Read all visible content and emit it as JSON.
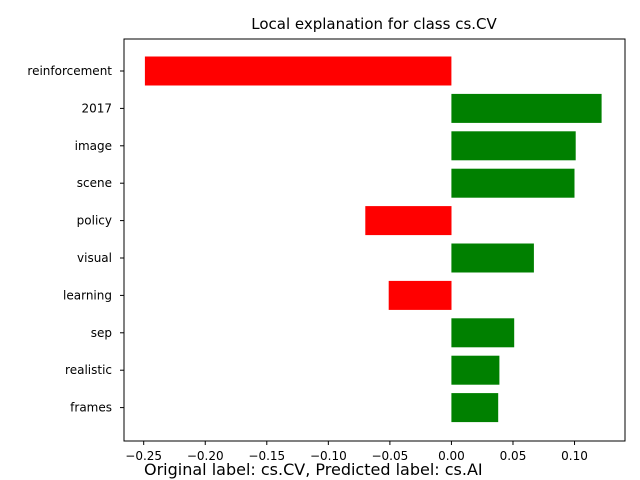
{
  "chart_data": {
    "type": "bar",
    "orientation": "horizontal",
    "title": "Local explanation for class cs.CV",
    "categories": [
      "reinforcement",
      "2017",
      "image",
      "scene",
      "policy",
      "visual",
      "learning",
      "sep",
      "realistic",
      "frames"
    ],
    "values": [
      -0.249,
      0.122,
      0.101,
      0.1,
      -0.07,
      0.067,
      -0.051,
      0.051,
      0.039,
      0.038
    ],
    "xlim": [
      -0.266,
      0.141
    ],
    "xticks": [
      -0.25,
      -0.2,
      -0.15,
      -0.1,
      -0.05,
      0.0,
      0.05,
      0.1
    ],
    "xtick_labels": [
      "−0.25",
      "−0.20",
      "−0.15",
      "−0.10",
      "−0.05",
      "0.00",
      "0.05",
      "0.10"
    ],
    "grid": false,
    "colors": {
      "positive": "#008000",
      "negative": "#ff0000"
    }
  },
  "caption": "Original label: cs.CV, Predicted label: cs.AI"
}
